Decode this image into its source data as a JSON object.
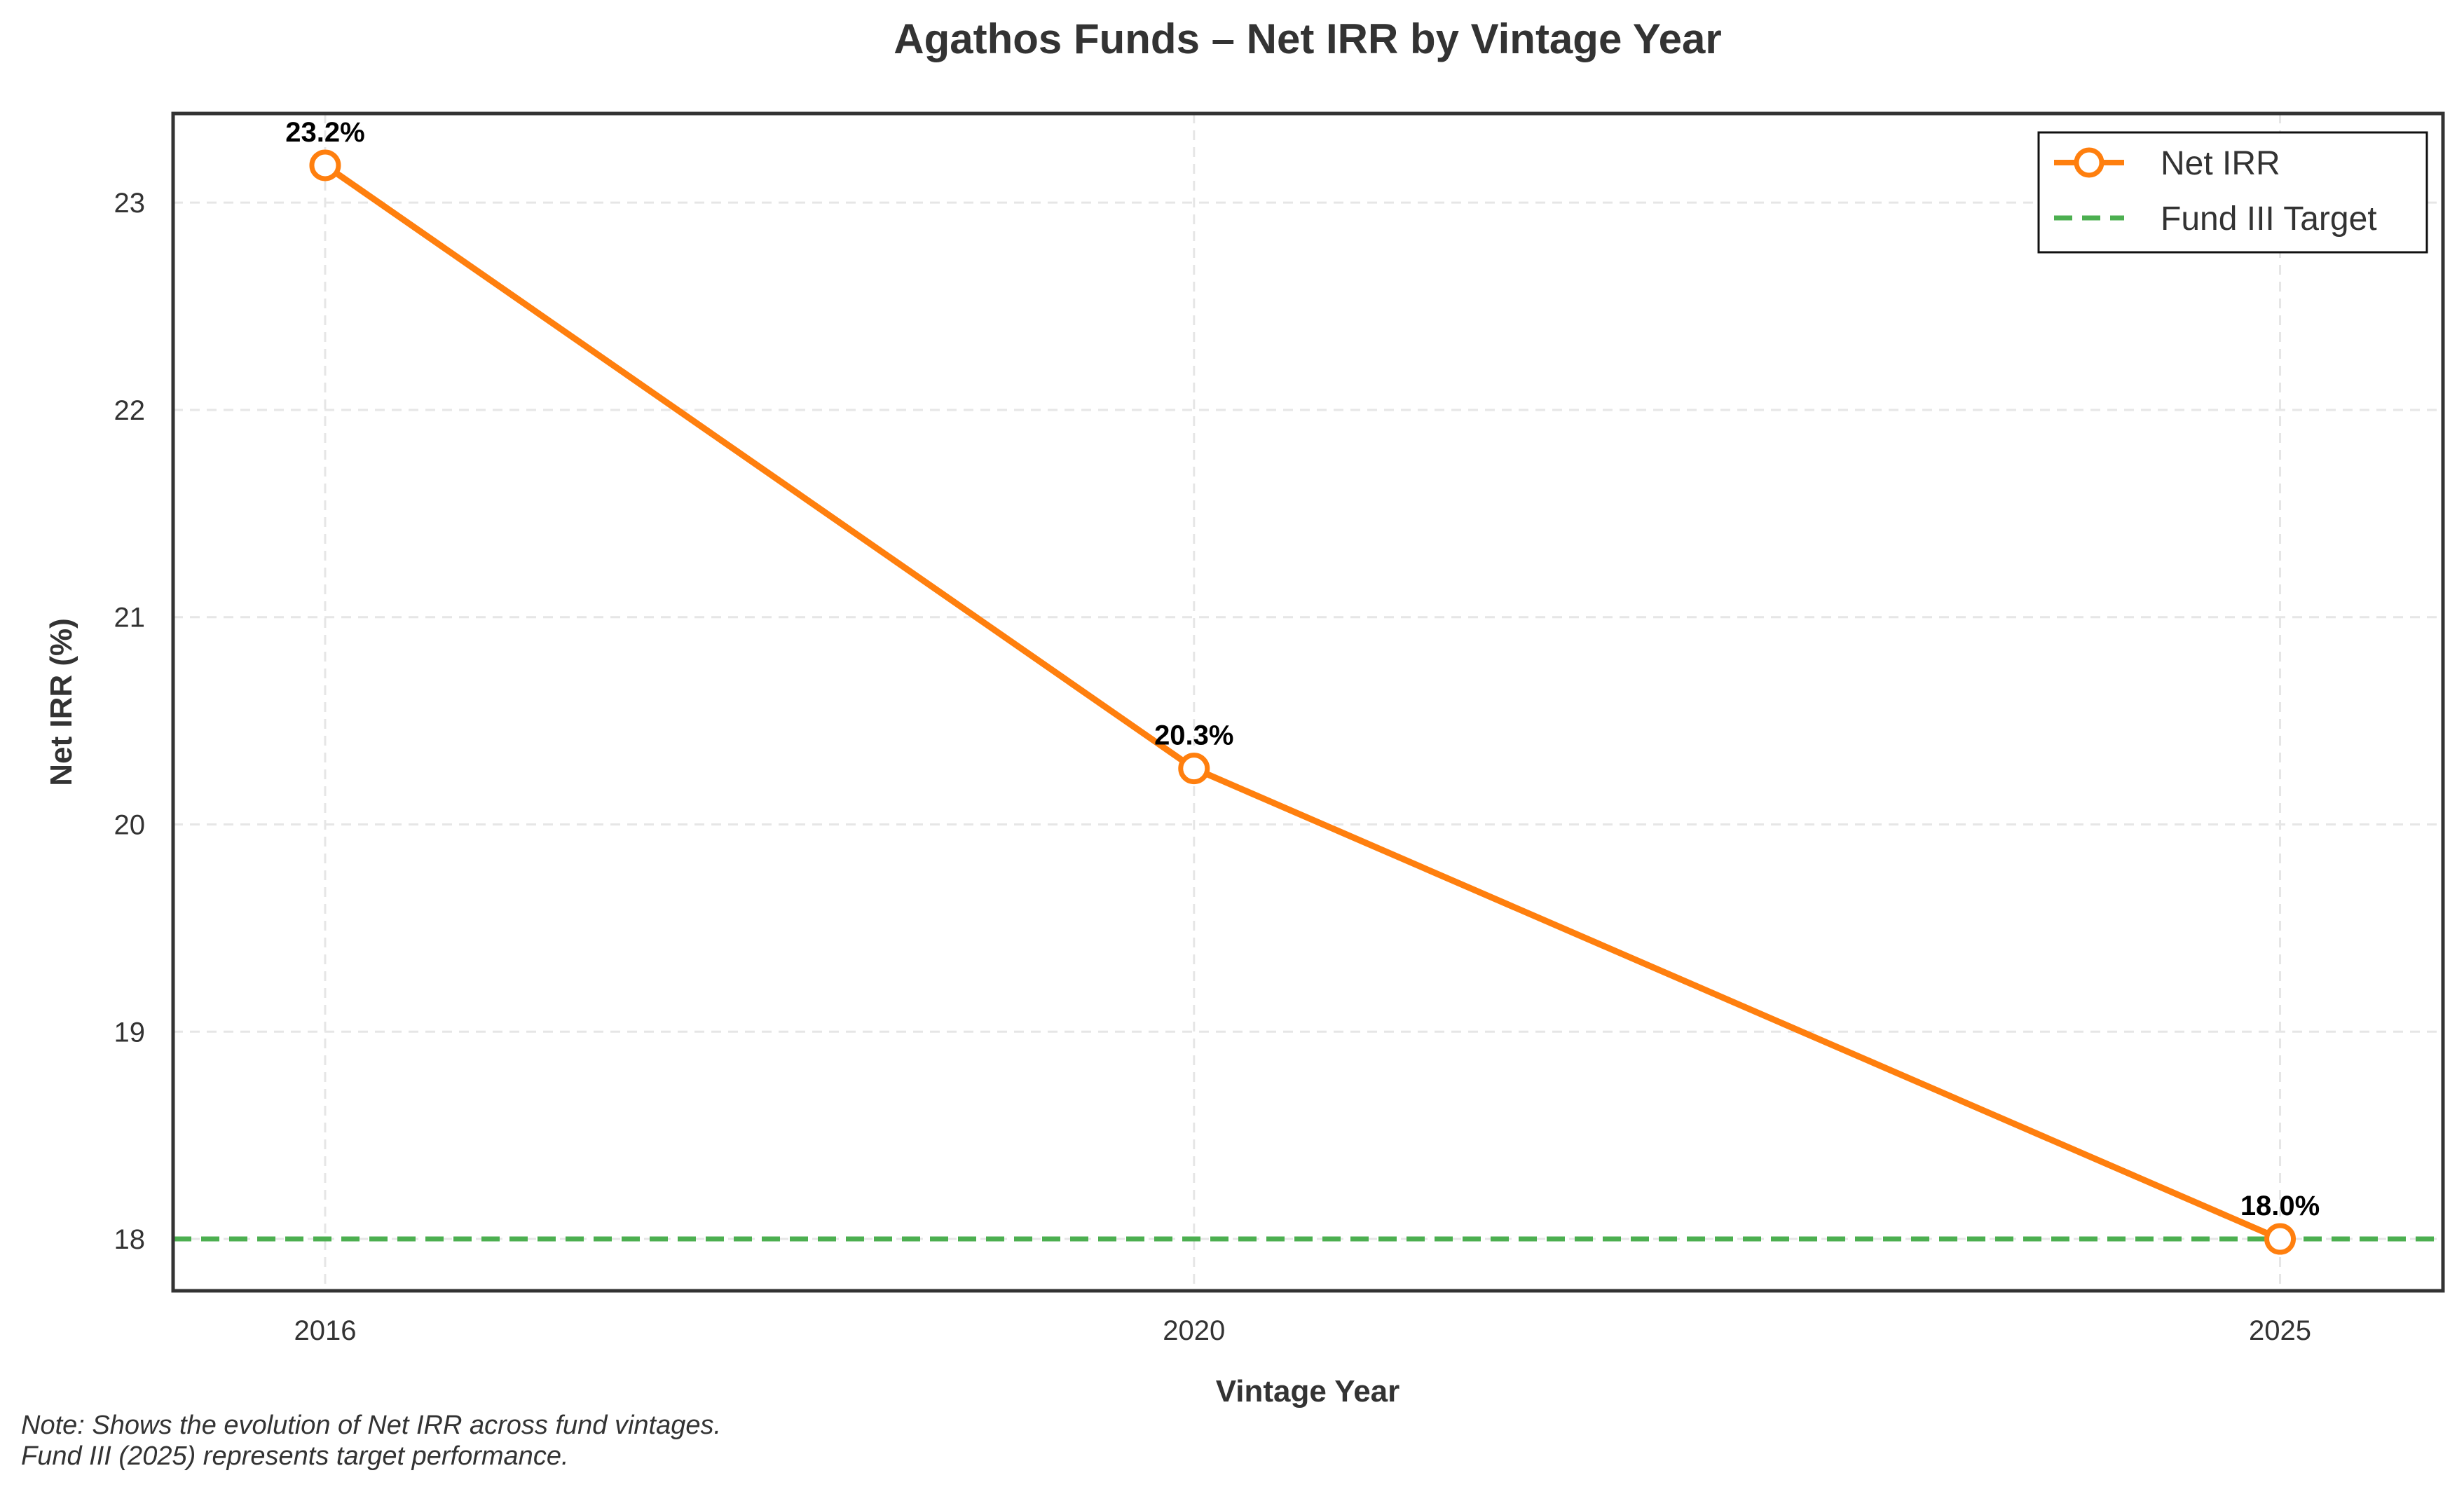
{
  "chart_data": {
    "type": "line",
    "title": "Agathos Funds – Net IRR by Vintage Year",
    "xlabel": "Vintage Year",
    "ylabel": "Net IRR (%)",
    "x": [
      2016,
      2020,
      2025
    ],
    "x_ticks": [
      "2016",
      "2020",
      "2025"
    ],
    "xlim": [
      2015.3,
      2025.75
    ],
    "ylim": [
      17.75,
      23.43
    ],
    "y_ticks": [
      18,
      19,
      20,
      21,
      22,
      23
    ],
    "grid": true,
    "legend_position": "top-right",
    "series": [
      {
        "name": "Net IRR",
        "values": [
          23.18,
          20.27,
          18.0
        ],
        "labels": [
          "23.2%",
          "20.3%",
          "18.0%"
        ],
        "color": "#ff7f0e",
        "marker": "open-circle"
      }
    ],
    "reference_lines": [
      {
        "name": "Fund III Target",
        "y": 18.0,
        "style": "dashed",
        "color": "#4caf50"
      }
    ]
  },
  "note": {
    "line1": "Note: Shows the evolution of Net IRR across fund vintages.",
    "line2": "Fund III (2025) represents target performance."
  }
}
